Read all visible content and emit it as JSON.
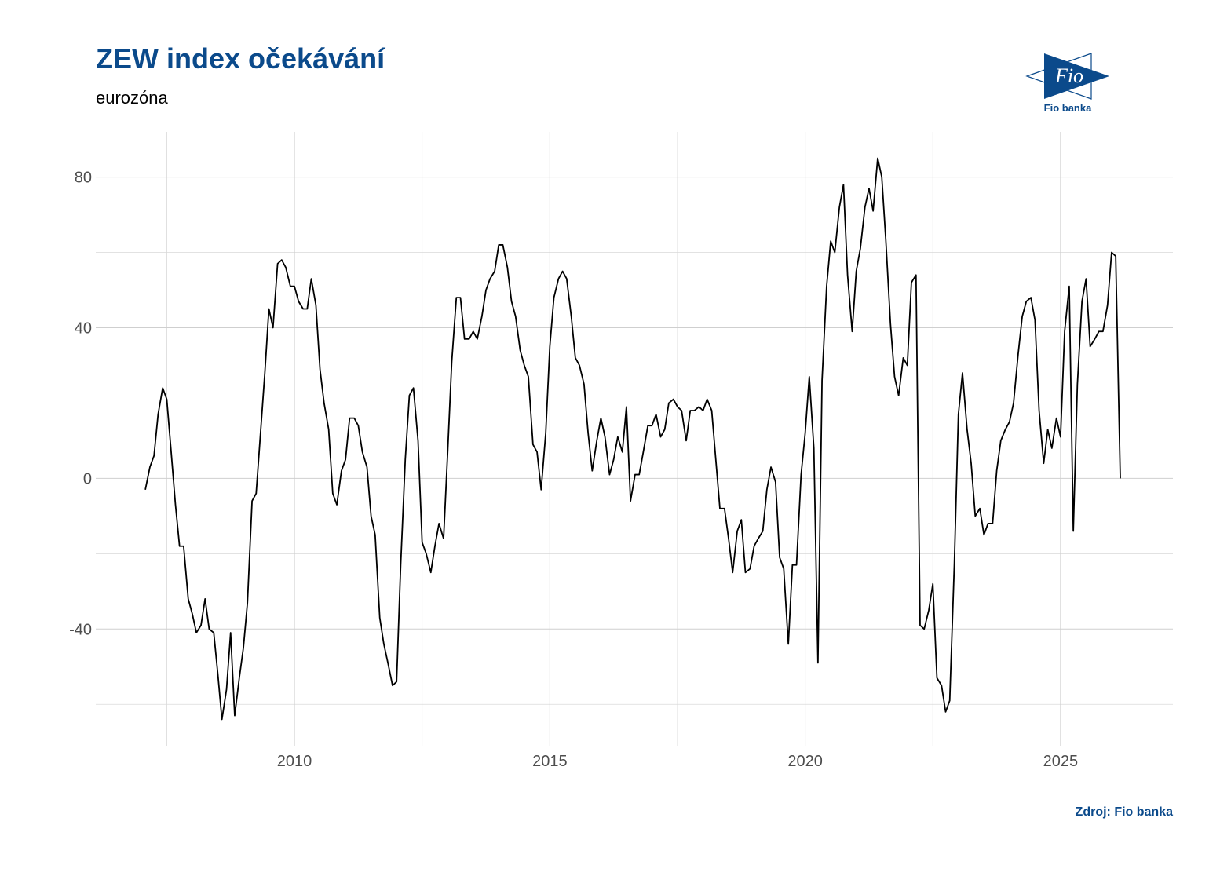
{
  "chart_data": {
    "type": "line",
    "title": "ZEW index očekávání",
    "subtitle": "eurozóna",
    "source": "Zdroj: Fio banka",
    "logo": {
      "mark": "Fio",
      "name": "Fio banka"
    },
    "color": "#000000",
    "grid": true,
    "xlim": [
      2006.11,
      2027.2
    ],
    "ylim": [
      -71,
      92
    ],
    "xticks": [
      2010,
      2015,
      2020,
      2025
    ],
    "xticks_minor": [
      2007.5,
      2012.5,
      2017.5,
      2022.5
    ],
    "yticks": [
      -40,
      0,
      40,
      80
    ],
    "yticks_minor": [
      -60,
      -20,
      20,
      60
    ],
    "x": [
      2007.08,
      2007.17,
      2007.25,
      2007.33,
      2007.42,
      2007.5,
      2007.58,
      2007.67,
      2007.75,
      2007.83,
      2007.92,
      2008,
      2008.08,
      2008.17,
      2008.25,
      2008.33,
      2008.42,
      2008.5,
      2008.58,
      2008.67,
      2008.75,
      2008.83,
      2008.92,
      2009,
      2009.08,
      2009.17,
      2009.25,
      2009.33,
      2009.42,
      2009.5,
      2009.58,
      2009.67,
      2009.75,
      2009.83,
      2009.92,
      2010,
      2010.08,
      2010.17,
      2010.25,
      2010.33,
      2010.42,
      2010.5,
      2010.58,
      2010.67,
      2010.75,
      2010.83,
      2010.92,
      2011,
      2011.08,
      2011.17,
      2011.25,
      2011.33,
      2011.42,
      2011.5,
      2011.58,
      2011.67,
      2011.75,
      2011.83,
      2011.92,
      2012,
      2012.08,
      2012.17,
      2012.25,
      2012.33,
      2012.42,
      2012.5,
      2012.58,
      2012.67,
      2012.75,
      2012.83,
      2012.92,
      2013,
      2013.08,
      2013.17,
      2013.25,
      2013.33,
      2013.42,
      2013.5,
      2013.58,
      2013.67,
      2013.75,
      2013.83,
      2013.92,
      2014,
      2014.08,
      2014.17,
      2014.25,
      2014.33,
      2014.42,
      2014.5,
      2014.58,
      2014.67,
      2014.75,
      2014.83,
      2014.92,
      2015,
      2015.08,
      2015.17,
      2015.25,
      2015.33,
      2015.42,
      2015.5,
      2015.58,
      2015.67,
      2015.75,
      2015.83,
      2015.92,
      2016,
      2016.08,
      2016.17,
      2016.25,
      2016.33,
      2016.42,
      2016.5,
      2016.58,
      2016.67,
      2016.75,
      2016.83,
      2016.92,
      2017,
      2017.08,
      2017.17,
      2017.25,
      2017.33,
      2017.42,
      2017.5,
      2017.58,
      2017.67,
      2017.75,
      2017.83,
      2017.92,
      2018,
      2018.08,
      2018.17,
      2018.25,
      2018.33,
      2018.42,
      2018.5,
      2018.58,
      2018.67,
      2018.75,
      2018.83,
      2018.92,
      2019,
      2019.08,
      2019.17,
      2019.25,
      2019.33,
      2019.42,
      2019.5,
      2019.58,
      2019.67,
      2019.75,
      2019.83,
      2019.92,
      2020,
      2020.08,
      2020.17,
      2020.25,
      2020.33,
      2020.42,
      2020.5,
      2020.58,
      2020.67,
      2020.75,
      2020.83,
      2020.92,
      2021,
      2021.08,
      2021.17,
      2021.25,
      2021.33,
      2021.42,
      2021.5,
      2021.58,
      2021.67,
      2021.75,
      2021.83,
      2021.92,
      2022,
      2022.08,
      2022.17,
      2022.25,
      2022.33,
      2022.42,
      2022.5,
      2022.58,
      2022.67,
      2022.75,
      2022.83,
      2022.92,
      2023,
      2023.08,
      2023.17,
      2023.25,
      2023.33,
      2023.42,
      2023.5,
      2023.58,
      2023.67,
      2023.75,
      2023.83,
      2023.92,
      2024,
      2024.08,
      2024.17,
      2024.25,
      2024.33,
      2024.42,
      2024.5,
      2024.58,
      2024.67,
      2024.75,
      2024.83,
      2024.92,
      2025,
      2025.08,
      2025.17,
      2025.25,
      2025.33,
      2025.42,
      2025.5,
      2025.58,
      2025.67,
      2025.75,
      2025.83,
      2025.92,
      2026,
      2026.08,
      2026.17
    ],
    "values": [
      -3,
      3,
      6,
      17,
      24,
      21,
      8,
      -7,
      -18,
      -18,
      -32,
      -36,
      -41,
      -39,
      -32,
      -40,
      -41,
      -52,
      -64,
      -56,
      -41,
      -63,
      -53,
      -45,
      -33,
      -6,
      -4,
      11,
      28,
      45,
      40,
      57,
      58,
      56,
      51,
      51,
      47,
      45,
      45,
      53,
      46,
      29,
      20,
      13,
      -4,
      -7,
      2,
      5,
      16,
      16,
      14,
      7,
      3,
      -10,
      -15,
      -37,
      -44,
      -49,
      -55,
      -54,
      -23,
      5,
      22,
      24,
      10,
      -17,
      -20,
      -25,
      -18,
      -12,
      -16,
      7,
      31,
      48,
      48,
      37,
      37,
      39,
      37,
      43,
      50,
      53,
      55,
      62,
      62,
      56,
      47,
      43,
      34,
      30,
      27,
      9,
      7,
      -3,
      12,
      35,
      48,
      53,
      55,
      53,
      43,
      32,
      30,
      25,
      12,
      2,
      10,
      16,
      11,
      1,
      5,
      11,
      7,
      19,
      -6,
      1,
      1,
      7,
      14,
      14,
      17,
      11,
      13,
      20,
      21,
      19,
      18,
      10,
      18,
      18,
      19,
      18,
      21,
      18,
      5,
      -8,
      -8,
      -16,
      -25,
      -14,
      -11,
      -25,
      -24,
      -18,
      -16,
      -14,
      -3,
      3,
      -1,
      -21,
      -24,
      -44,
      -23,
      -23,
      1,
      12,
      27,
      8,
      -49,
      26,
      51,
      63,
      60,
      72,
      78,
      54,
      39,
      55,
      61,
      72,
      77,
      71,
      85,
      80,
      63,
      41,
      27,
      22,
      32,
      30,
      52,
      54,
      -39,
      -40,
      -35,
      -28,
      -53,
      -55,
      -62,
      -59,
      -23,
      17,
      28,
      13,
      4,
      -10,
      -8,
      -15,
      -12,
      -12,
      2,
      10,
      13,
      15,
      20,
      33,
      43,
      47,
      48,
      42,
      18,
      4,
      13,
      8,
      16,
      11,
      39,
      51,
      -14,
      25,
      47,
      53,
      35,
      37,
      39,
      39,
      46,
      60,
      59,
      0
    ]
  }
}
